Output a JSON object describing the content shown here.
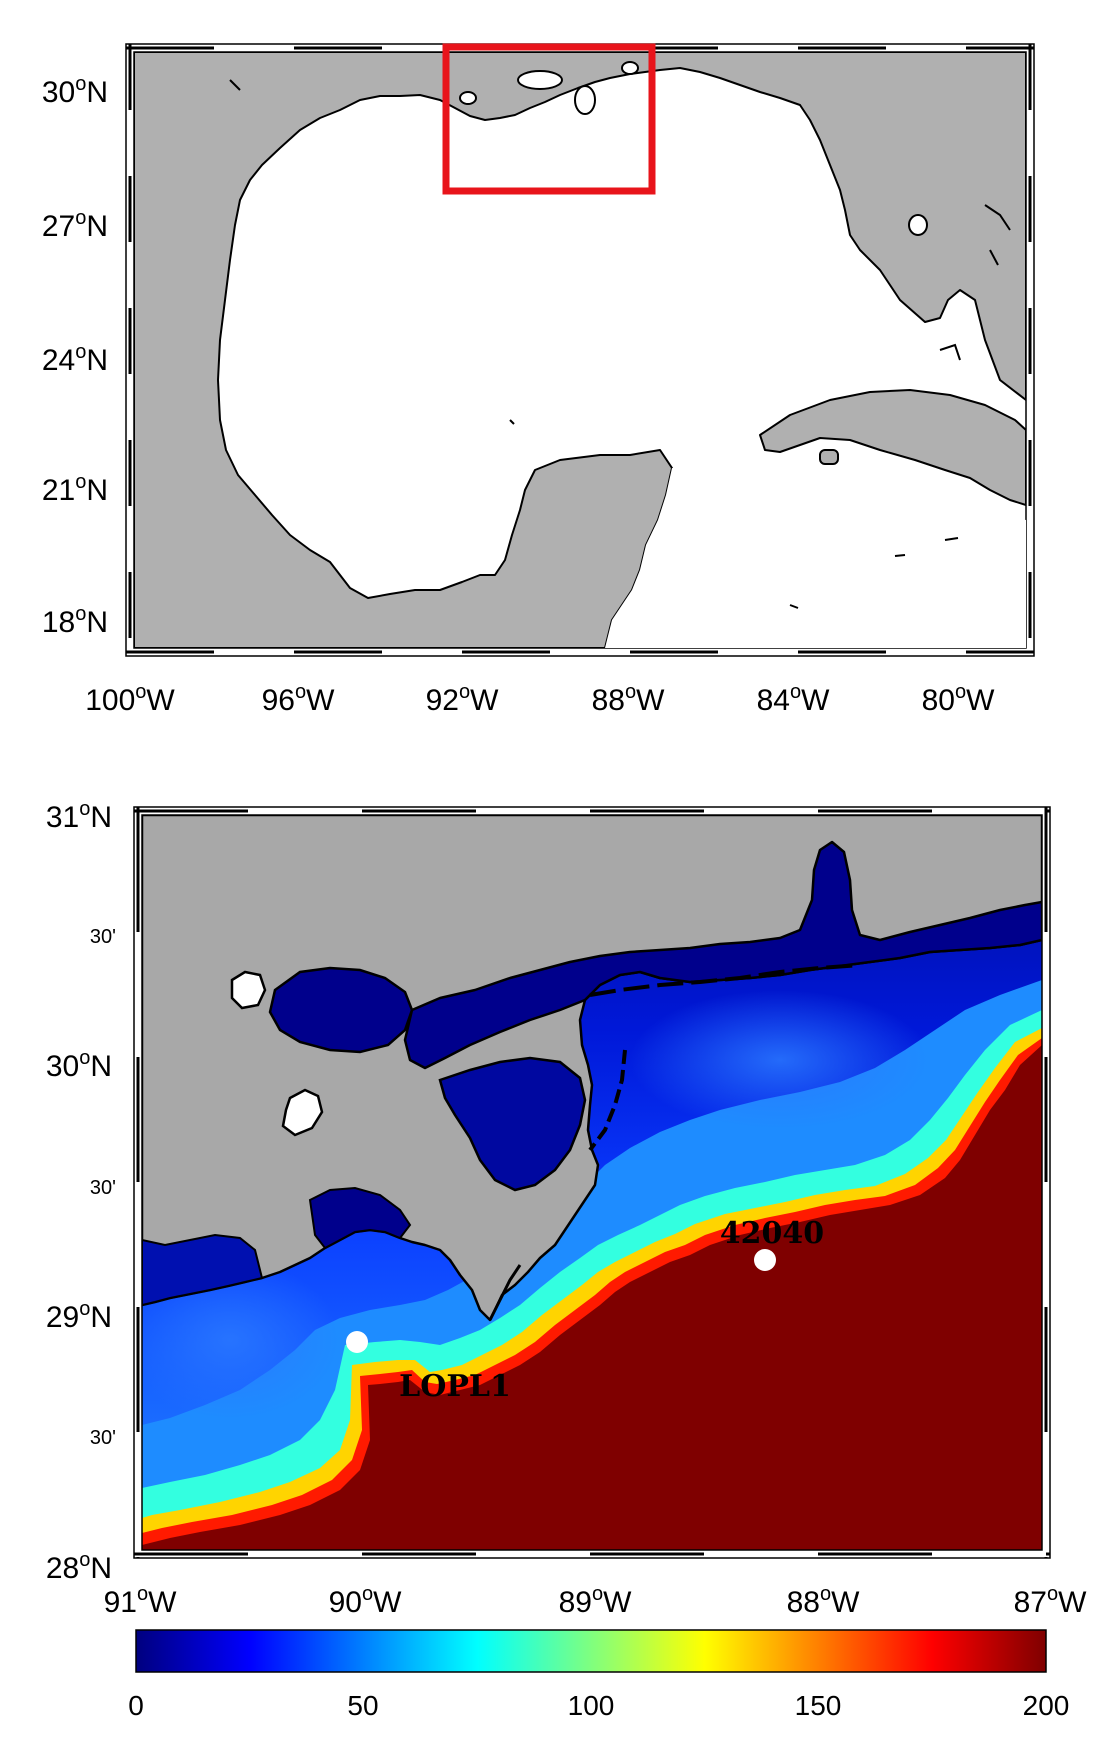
{
  "overview_map": {
    "x_ticks": [
      {
        "main": "100",
        "deg": "o",
        "hemi": "W"
      },
      {
        "main": "96",
        "deg": "o",
        "hemi": "W"
      },
      {
        "main": "92",
        "deg": "o",
        "hemi": "W"
      },
      {
        "main": "88",
        "deg": "o",
        "hemi": "W"
      },
      {
        "main": "84",
        "deg": "o",
        "hemi": "W"
      },
      {
        "main": "80",
        "deg": "o",
        "hemi": "W"
      }
    ],
    "y_ticks": [
      {
        "main": "30",
        "deg": "o",
        "hemi": "N"
      },
      {
        "main": "27",
        "deg": "o",
        "hemi": "N"
      },
      {
        "main": "24",
        "deg": "o",
        "hemi": "N"
      },
      {
        "main": "21",
        "deg": "o",
        "hemi": "N"
      },
      {
        "main": "18",
        "deg": "o",
        "hemi": "N"
      }
    ],
    "land_color": "#b0b0b0",
    "water_color": "#ffffff",
    "highlight_box_color": "#e8141b"
  },
  "detail_map": {
    "x_ticks": [
      {
        "main": "91",
        "deg": "o",
        "hemi": "W"
      },
      {
        "main": "90",
        "deg": "o",
        "hemi": "W"
      },
      {
        "main": "89",
        "deg": "o",
        "hemi": "W"
      },
      {
        "main": "88",
        "deg": "o",
        "hemi": "W"
      },
      {
        "main": "87",
        "deg": "o",
        "hemi": "W"
      }
    ],
    "y_ticks_major": [
      {
        "main": "31",
        "deg": "o",
        "hemi": "N"
      },
      {
        "main": "30",
        "deg": "o",
        "hemi": "N"
      },
      {
        "main": "29",
        "deg": "o",
        "hemi": "N"
      },
      {
        "main": "28",
        "deg": "o",
        "hemi": "N"
      }
    ],
    "y_ticks_minor": [
      "30'",
      "30'",
      "30'"
    ],
    "stations": [
      {
        "id": "42040"
      },
      {
        "id": "LOPL1"
      }
    ],
    "land_color": "#a8a8a8",
    "deep_color": "#7f0000"
  },
  "colorbar": {
    "labels": [
      "0",
      "50",
      "100",
      "150",
      "200"
    ],
    "min": 0,
    "max": 200,
    "colormap": "jet"
  }
}
